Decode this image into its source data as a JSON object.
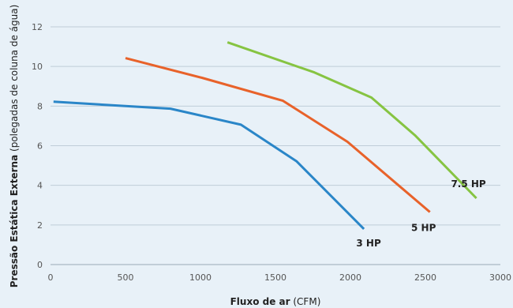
{
  "chart_data": {
    "type": "line",
    "xlabel_bold": "Fluxo de ar",
    "xlabel_unit": "(CFM)",
    "ylabel_bold": "Pressão Estática Externa",
    "ylabel_unit": "(polegadas de coluna de água)",
    "xlim": [
      0,
      3000
    ],
    "ylim": [
      0,
      12
    ],
    "x_ticks": [
      0,
      500,
      1000,
      1500,
      2000,
      2500,
      3000
    ],
    "y_ticks": [
      0,
      2,
      4,
      6,
      8,
      10,
      12
    ],
    "grid": "horizontal",
    "series": [
      {
        "name": "3 HP",
        "color": "#2a86c8",
        "points": [
          [
            20,
            8.22
          ],
          [
            800,
            7.87
          ],
          [
            1270,
            7.06
          ],
          [
            1640,
            5.22
          ],
          [
            2090,
            1.8
          ]
        ]
      },
      {
        "name": "5 HP",
        "color": "#e8622a",
        "points": [
          [
            500,
            10.42
          ],
          [
            1010,
            9.43
          ],
          [
            1550,
            8.27
          ],
          [
            1980,
            6.2
          ],
          [
            2530,
            2.65
          ]
        ]
      },
      {
        "name": "7.5 HP",
        "color": "#86c442",
        "points": [
          [
            1180,
            11.22
          ],
          [
            1760,
            9.7
          ],
          [
            2140,
            8.43
          ],
          [
            2430,
            6.53
          ],
          [
            2840,
            3.35
          ]
        ]
      }
    ]
  }
}
